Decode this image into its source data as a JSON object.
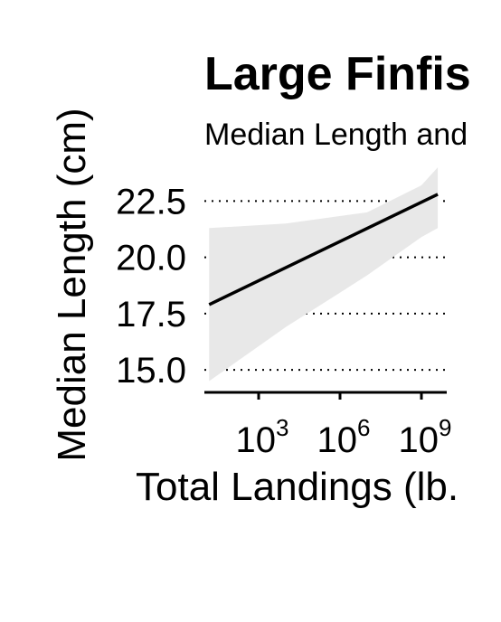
{
  "chart_data": {
    "type": "line",
    "title": "Large Finfis",
    "subtitle": "Median Length and",
    "xlabel": "Total Landings (lb.",
    "ylabel": "Median Length (cm)",
    "x_scale": "log10",
    "x_ticks": [
      {
        "base": "10",
        "exp": "3",
        "value": 1000
      },
      {
        "base": "10",
        "exp": "6",
        "value": 1000000
      },
      {
        "base": "10",
        "exp": "9",
        "value": 1000000000
      }
    ],
    "y_ticks": [
      "15.0",
      "17.5",
      "20.0",
      "22.5"
    ],
    "y_tick_values": [
      15.0,
      17.5,
      20.0,
      22.5
    ],
    "ylim": [
      14.0,
      23.4
    ],
    "xlim": [
      10,
      10000000000
    ],
    "grid": "horizontal-dotted",
    "series": [
      {
        "type": "fit",
        "x": [
          15,
          4000000000
        ],
        "y": [
          17.9,
          22.8
        ],
        "ci_x": [
          15,
          10000,
          10000000,
          1000000000,
          4000000000
        ],
        "ci_upper": [
          21.3,
          21.5,
          22.0,
          23.2,
          24.0
        ],
        "ci_lower": [
          14.5,
          16.9,
          19.2,
          20.9,
          21.3
        ]
      }
    ],
    "colors": {
      "line": "#000000",
      "ribbon": "#e8e8e8",
      "grid": "#000000",
      "axis": "#000000"
    }
  }
}
